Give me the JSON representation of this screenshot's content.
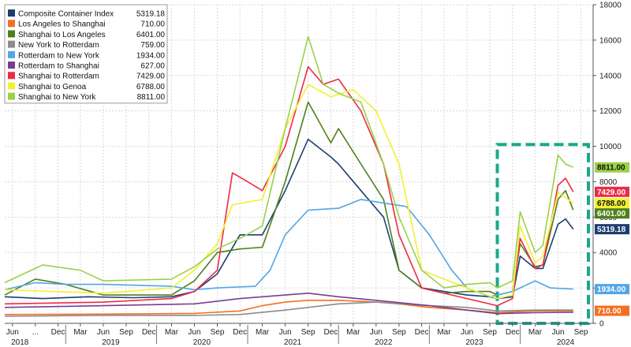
{
  "chart_data": {
    "type": "line",
    "title": "",
    "xlabel": "",
    "ylabel": "",
    "ylim": [
      0,
      18000
    ],
    "yticks": [
      0,
      2000,
      4000,
      6000,
      8000,
      10000,
      12000,
      14000,
      16000,
      18000
    ],
    "y_axis_side": "right",
    "grid": true,
    "legend_position": "top-left",
    "x_month_labels": [
      {
        "t": "2018-06",
        "label": "Jun"
      },
      {
        "t": "2018-09",
        "label": "..."
      },
      {
        "t": "2018-12",
        "label": "Dec"
      },
      {
        "t": "2019-03",
        "label": "Mar"
      },
      {
        "t": "2019-06",
        "label": "Jun"
      },
      {
        "t": "2019-09",
        "label": "Sep"
      },
      {
        "t": "2019-12",
        "label": "Dec"
      },
      {
        "t": "2020-03",
        "label": "Mar"
      },
      {
        "t": "2020-06",
        "label": "Jun"
      },
      {
        "t": "2020-09",
        "label": "Sep"
      },
      {
        "t": "2020-12",
        "label": "Dec"
      },
      {
        "t": "2021-03",
        "label": "Mar"
      },
      {
        "t": "2021-06",
        "label": "Jun"
      },
      {
        "t": "2021-09",
        "label": "Sep"
      },
      {
        "t": "2021-12",
        "label": "Dec"
      },
      {
        "t": "2022-03",
        "label": "Mar"
      },
      {
        "t": "2022-06",
        "label": "Jun"
      },
      {
        "t": "2022-09",
        "label": "Sep"
      },
      {
        "t": "2022-12",
        "label": "Dec"
      },
      {
        "t": "2023-03",
        "label": "Mar"
      },
      {
        "t": "2023-06",
        "label": "Jun"
      },
      {
        "t": "2023-09",
        "label": "Sep"
      },
      {
        "t": "2023-12",
        "label": "Dec"
      },
      {
        "t": "2024-03",
        "label": "Mar"
      },
      {
        "t": "2024-06",
        "label": "Jun"
      },
      {
        "t": "2024-09",
        "label": "Sep"
      }
    ],
    "x_year_labels": [
      {
        "t": "2018-07",
        "label": "2018"
      },
      {
        "t": "2019-07",
        "label": "2019"
      },
      {
        "t": "2020-07",
        "label": "2020"
      },
      {
        "t": "2021-07",
        "label": "2021"
      },
      {
        "t": "2022-07",
        "label": "2022"
      },
      {
        "t": "2023-07",
        "label": "2023"
      },
      {
        "t": "2024-07",
        "label": "2024"
      }
    ],
    "highlight_box": {
      "x_start": "2023-10",
      "x_end": "2024-10",
      "y_start": 0,
      "y_end": 10100,
      "color": "#1aa88a"
    },
    "series": [
      {
        "name": "Composite Container Index",
        "value_label": "5319.18",
        "end_label": "5319.18",
        "color": "#1d3f6e",
        "points": [
          [
            "2018-05",
            1500
          ],
          [
            "2018-10",
            1400
          ],
          [
            "2019-04",
            1500
          ],
          [
            "2019-10",
            1450
          ],
          [
            "2020-03",
            1500
          ],
          [
            "2020-06",
            1800
          ],
          [
            "2020-09",
            2800
          ],
          [
            "2020-12",
            5000
          ],
          [
            "2021-03",
            5000
          ],
          [
            "2021-06",
            7500
          ],
          [
            "2021-09",
            10400
          ],
          [
            "2021-12",
            9400
          ],
          [
            "2022-01",
            9000
          ],
          [
            "2022-04",
            7500
          ],
          [
            "2022-07",
            6000
          ],
          [
            "2022-09",
            3000
          ],
          [
            "2022-12",
            2000
          ],
          [
            "2023-03",
            1800
          ],
          [
            "2023-06",
            1600
          ],
          [
            "2023-09",
            1500
          ],
          [
            "2023-10",
            1400
          ],
          [
            "2023-12",
            1500
          ],
          [
            "2024-01",
            3800
          ],
          [
            "2024-03",
            3100
          ],
          [
            "2024-04",
            3100
          ],
          [
            "2024-06",
            5600
          ],
          [
            "2024-07",
            5900
          ],
          [
            "2024-08",
            5319
          ]
        ]
      },
      {
        "name": "Los Angeles to Shanghai",
        "value_label": "710.00",
        "end_label": "710.00",
        "color": "#f36f21",
        "points": [
          [
            "2018-05",
            500
          ],
          [
            "2019-06",
            520
          ],
          [
            "2020-06",
            560
          ],
          [
            "2020-12",
            700
          ],
          [
            "2021-03",
            1000
          ],
          [
            "2021-06",
            1200
          ],
          [
            "2021-09",
            1300
          ],
          [
            "2022-01",
            1300
          ],
          [
            "2022-06",
            1200
          ],
          [
            "2022-09",
            1100
          ],
          [
            "2023-01",
            900
          ],
          [
            "2023-06",
            750
          ],
          [
            "2023-10",
            600
          ],
          [
            "2024-03",
            700
          ],
          [
            "2024-08",
            710
          ]
        ]
      },
      {
        "name": "Shanghai to Los Angeles",
        "value_label": "6401.00",
        "end_label": "6401.00",
        "color": "#4f7f1b",
        "points": [
          [
            "2018-05",
            1600
          ],
          [
            "2018-09",
            2500
          ],
          [
            "2019-01",
            2200
          ],
          [
            "2019-06",
            1600
          ],
          [
            "2020-03",
            1600
          ],
          [
            "2020-06",
            2400
          ],
          [
            "2020-09",
            4000
          ],
          [
            "2020-12",
            4200
          ],
          [
            "2021-03",
            4300
          ],
          [
            "2021-06",
            8000
          ],
          [
            "2021-09",
            12500
          ],
          [
            "2021-12",
            10200
          ],
          [
            "2022-01",
            11000
          ],
          [
            "2022-04",
            9000
          ],
          [
            "2022-07",
            7000
          ],
          [
            "2022-09",
            3000
          ],
          [
            "2022-12",
            2000
          ],
          [
            "2023-03",
            1700
          ],
          [
            "2023-06",
            1800
          ],
          [
            "2023-09",
            1800
          ],
          [
            "2023-10",
            1600
          ],
          [
            "2023-12",
            1800
          ],
          [
            "2024-01",
            4500
          ],
          [
            "2024-03",
            3200
          ],
          [
            "2024-04",
            3300
          ],
          [
            "2024-06",
            7000
          ],
          [
            "2024-07",
            7500
          ],
          [
            "2024-08",
            6401
          ]
        ]
      },
      {
        "name": "New York to Rotterdam",
        "value_label": "759.00",
        "end_label": "",
        "color": "#8c8c8c",
        "points": [
          [
            "2018-05",
            400
          ],
          [
            "2019-06",
            450
          ],
          [
            "2020-06",
            450
          ],
          [
            "2020-12",
            500
          ],
          [
            "2021-06",
            750
          ],
          [
            "2022-01",
            1100
          ],
          [
            "2022-06",
            1200
          ],
          [
            "2023-01",
            1000
          ],
          [
            "2023-06",
            900
          ],
          [
            "2023-10",
            700
          ],
          [
            "2024-03",
            750
          ],
          [
            "2024-08",
            759
          ]
        ]
      },
      {
        "name": "Rotterdam to New York",
        "value_label": "1934.00",
        "end_label": "1934.00",
        "color": "#52a6e6",
        "points": [
          [
            "2018-05",
            1900
          ],
          [
            "2018-09",
            2300
          ],
          [
            "2019-01",
            2200
          ],
          [
            "2019-06",
            2200
          ],
          [
            "2020-03",
            2100
          ],
          [
            "2020-06",
            1900
          ],
          [
            "2020-09",
            2000
          ],
          [
            "2021-02",
            2100
          ],
          [
            "2021-04",
            3000
          ],
          [
            "2021-06",
            5000
          ],
          [
            "2021-09",
            6400
          ],
          [
            "2022-01",
            6500
          ],
          [
            "2022-04",
            7000
          ],
          [
            "2022-07",
            6800
          ],
          [
            "2022-10",
            6600
          ],
          [
            "2023-01",
            5000
          ],
          [
            "2023-04",
            3000
          ],
          [
            "2023-06",
            2000
          ],
          [
            "2023-09",
            1500
          ],
          [
            "2023-12",
            1800
          ],
          [
            "2024-03",
            2400
          ],
          [
            "2024-05",
            2000
          ],
          [
            "2024-08",
            1934
          ]
        ]
      },
      {
        "name": "Rotterdam to Shanghai",
        "value_label": "627.00",
        "end_label": "",
        "color": "#7a3d8e",
        "points": [
          [
            "2018-05",
            900
          ],
          [
            "2019-06",
            1000
          ],
          [
            "2020-06",
            1100
          ],
          [
            "2020-12",
            1400
          ],
          [
            "2021-06",
            1600
          ],
          [
            "2021-09",
            1700
          ],
          [
            "2022-01",
            1500
          ],
          [
            "2022-06",
            1300
          ],
          [
            "2023-01",
            1000
          ],
          [
            "2023-06",
            750
          ],
          [
            "2023-10",
            550
          ],
          [
            "2024-03",
            600
          ],
          [
            "2024-08",
            627
          ]
        ]
      },
      {
        "name": "Shanghai to Rotterdam",
        "value_label": "7429.00",
        "end_label": "7429.00",
        "color": "#ed2a44",
        "points": [
          [
            "2018-05",
            1100
          ],
          [
            "2019-06",
            1200
          ],
          [
            "2020-03",
            1400
          ],
          [
            "2020-06",
            1800
          ],
          [
            "2020-09",
            3000
          ],
          [
            "2020-11",
            8500
          ],
          [
            "2021-01",
            8000
          ],
          [
            "2021-03",
            7500
          ],
          [
            "2021-06",
            10000
          ],
          [
            "2021-09",
            14500
          ],
          [
            "2021-11",
            13500
          ],
          [
            "2022-01",
            13800
          ],
          [
            "2022-04",
            12000
          ],
          [
            "2022-07",
            9000
          ],
          [
            "2022-09",
            5000
          ],
          [
            "2022-12",
            2000
          ],
          [
            "2023-06",
            1400
          ],
          [
            "2023-10",
            1000
          ],
          [
            "2023-12",
            1400
          ],
          [
            "2024-01",
            4800
          ],
          [
            "2024-03",
            3100
          ],
          [
            "2024-04",
            3300
          ],
          [
            "2024-06",
            7800
          ],
          [
            "2024-07",
            8200
          ],
          [
            "2024-08",
            7429
          ]
        ]
      },
      {
        "name": "Shanghai to Genoa",
        "value_label": "6788.00",
        "end_label": "6788.00",
        "color": "#f2f033",
        "points": [
          [
            "2018-05",
            1900
          ],
          [
            "2019-06",
            1700
          ],
          [
            "2020-03",
            2000
          ],
          [
            "2020-06",
            3000
          ],
          [
            "2020-09",
            4500
          ],
          [
            "2020-11",
            6700
          ],
          [
            "2021-03",
            7000
          ],
          [
            "2021-06",
            11000
          ],
          [
            "2021-09",
            13500
          ],
          [
            "2021-12",
            12800
          ],
          [
            "2022-03",
            13200
          ],
          [
            "2022-06",
            12000
          ],
          [
            "2022-09",
            9000
          ],
          [
            "2022-12",
            3000
          ],
          [
            "2023-06",
            2000
          ],
          [
            "2023-10",
            1400
          ],
          [
            "2023-12",
            1600
          ],
          [
            "2024-01",
            5500
          ],
          [
            "2024-03",
            3400
          ],
          [
            "2024-04",
            3800
          ],
          [
            "2024-06",
            7400
          ],
          [
            "2024-07",
            7100
          ],
          [
            "2024-08",
            6788
          ]
        ]
      },
      {
        "name": "Shanghai to New York",
        "value_label": "8811.00",
        "end_label": "8811.00",
        "color": "#9bd147",
        "points": [
          [
            "2018-05",
            2300
          ],
          [
            "2018-10",
            3300
          ],
          [
            "2019-03",
            3000
          ],
          [
            "2019-06",
            2400
          ],
          [
            "2020-03",
            2500
          ],
          [
            "2020-06",
            3200
          ],
          [
            "2020-09",
            4200
          ],
          [
            "2020-12",
            4800
          ],
          [
            "2021-03",
            5500
          ],
          [
            "2021-06",
            11000
          ],
          [
            "2021-09",
            16200
          ],
          [
            "2021-11",
            13500
          ],
          [
            "2022-01",
            13000
          ],
          [
            "2022-04",
            12500
          ],
          [
            "2022-07",
            9000
          ],
          [
            "2022-09",
            6000
          ],
          [
            "2022-12",
            3000
          ],
          [
            "2023-03",
            2000
          ],
          [
            "2023-06",
            2200
          ],
          [
            "2023-09",
            2300
          ],
          [
            "2023-10",
            2000
          ],
          [
            "2023-12",
            2400
          ],
          [
            "2024-01",
            6300
          ],
          [
            "2024-03",
            4000
          ],
          [
            "2024-04",
            4400
          ],
          [
            "2024-06",
            9500
          ],
          [
            "2024-07",
            9000
          ],
          [
            "2024-08",
            8811
          ]
        ]
      }
    ]
  }
}
